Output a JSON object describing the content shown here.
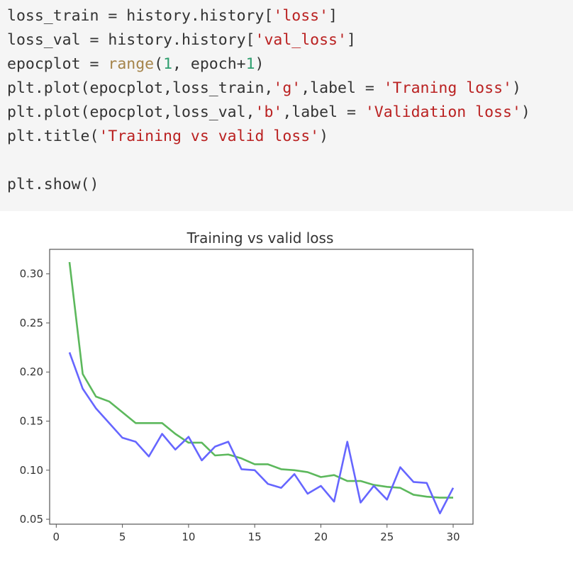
{
  "code_cell": {
    "lines": [
      [
        {
          "t": "loss_train = history.history[",
          "c": ""
        },
        {
          "t": "'loss'",
          "c": "str"
        },
        {
          "t": "]",
          "c": ""
        }
      ],
      [
        {
          "t": "loss_val = history.history[",
          "c": ""
        },
        {
          "t": "'val_loss'",
          "c": "str"
        },
        {
          "t": "]",
          "c": ""
        }
      ],
      [
        {
          "t": "epocplot = ",
          "c": ""
        },
        {
          "t": "range",
          "c": "builtin"
        },
        {
          "t": "(",
          "c": ""
        },
        {
          "t": "1",
          "c": "num"
        },
        {
          "t": ", epoch+",
          "c": ""
        },
        {
          "t": "1",
          "c": "num"
        },
        {
          "t": ")",
          "c": ""
        }
      ],
      [
        {
          "t": "plt.plot(epocplot,loss_train,",
          "c": ""
        },
        {
          "t": "'g'",
          "c": "str"
        },
        {
          "t": ",label = ",
          "c": ""
        },
        {
          "t": "'Traning loss'",
          "c": "str"
        },
        {
          "t": ")",
          "c": ""
        }
      ],
      [
        {
          "t": "plt.plot(epocplot,loss_val,",
          "c": ""
        },
        {
          "t": "'b'",
          "c": "str"
        },
        {
          "t": ",label = ",
          "c": ""
        },
        {
          "t": "'Validation loss'",
          "c": "str"
        },
        {
          "t": ")",
          "c": ""
        }
      ],
      [
        {
          "t": "plt.title(",
          "c": ""
        },
        {
          "t": "'Training vs valid loss'",
          "c": "str"
        },
        {
          "t": ")",
          "c": ""
        }
      ],
      [],
      [
        {
          "t": "plt.show()",
          "c": ""
        }
      ]
    ]
  },
  "colors": {
    "train_line": "#5cb85c",
    "val_line": "#6666ff",
    "axes": "#555555",
    "text": "#333333"
  },
  "chart_data": {
    "type": "line",
    "title": "Training vs valid loss",
    "xlabel": "",
    "ylabel": "",
    "xlim": [
      -0.5,
      31.5
    ],
    "ylim": [
      0.045,
      0.325
    ],
    "xticks": [
      0,
      5,
      10,
      15,
      20,
      25,
      30
    ],
    "xtick_labels": [
      "0",
      "5",
      "10",
      "15",
      "20",
      "25",
      "30"
    ],
    "yticks": [
      0.05,
      0.1,
      0.15,
      0.2,
      0.25,
      0.3
    ],
    "ytick_labels": [
      "0.05",
      "0.10",
      "0.15",
      "0.20",
      "0.25",
      "0.30"
    ],
    "grid": false,
    "x": [
      1,
      2,
      3,
      4,
      5,
      6,
      7,
      8,
      9,
      10,
      11,
      12,
      13,
      14,
      15,
      16,
      17,
      18,
      19,
      20,
      21,
      22,
      23,
      24,
      25,
      26,
      27,
      28,
      29,
      30
    ],
    "series": [
      {
        "color": "#5cb85c",
        "values": [
          0.312,
          0.198,
          0.175,
          0.17,
          0.159,
          0.148,
          0.148,
          0.148,
          0.137,
          0.128,
          0.128,
          0.115,
          0.116,
          0.112,
          0.106,
          0.106,
          0.101,
          0.1,
          0.098,
          0.093,
          0.095,
          0.089,
          0.089,
          0.085,
          0.083,
          0.082,
          0.075,
          0.073,
          0.072,
          0.072
        ]
      },
      {
        "color": "#6666ff",
        "values": [
          0.22,
          0.183,
          0.163,
          0.148,
          0.133,
          0.129,
          0.114,
          0.137,
          0.121,
          0.134,
          0.11,
          0.124,
          0.129,
          0.101,
          0.1,
          0.086,
          0.082,
          0.096,
          0.076,
          0.084,
          0.068,
          0.129,
          0.067,
          0.084,
          0.07,
          0.103,
          0.088,
          0.087,
          0.056,
          0.082
        ]
      }
    ]
  }
}
